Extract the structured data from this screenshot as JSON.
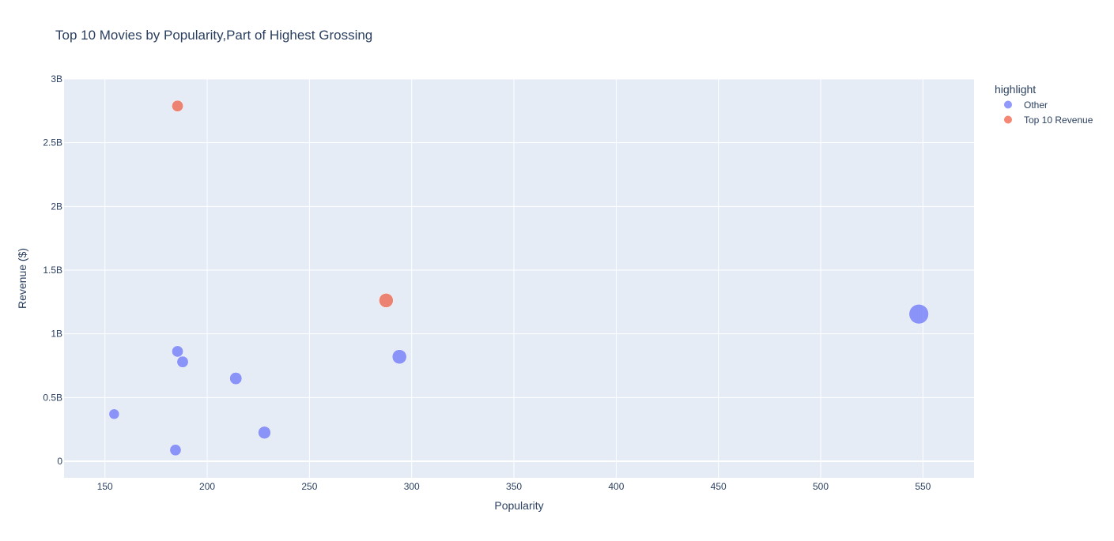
{
  "chart_data": {
    "type": "scatter",
    "title": "Top 10 Movies by Popularity,Part of Highest Grossing",
    "xlabel": "Popularity",
    "ylabel": "Revenue ($)",
    "xlim": [
      130,
      575
    ],
    "ylim": [
      -0.13,
      3.0
    ],
    "x_ticks": [
      150,
      200,
      250,
      300,
      350,
      400,
      450,
      500,
      550
    ],
    "y_ticks": [
      {
        "value": 0,
        "label": "0"
      },
      {
        "value": 0.5,
        "label": "0.5B"
      },
      {
        "value": 1,
        "label": "1B"
      },
      {
        "value": 1.5,
        "label": "1.5B"
      },
      {
        "value": 2,
        "label": "2B"
      },
      {
        "value": 2.5,
        "label": "2.5B"
      },
      {
        "value": 3,
        "label": "3B"
      }
    ],
    "y_unit": "billions USD",
    "grid": true,
    "legend": {
      "title": "highlight",
      "position": "top-right"
    },
    "series": [
      {
        "name": "Other",
        "color": "#636efa",
        "points": [
          {
            "x": 548,
            "y": 1.155
          },
          {
            "x": 294,
            "y": 0.82
          },
          {
            "x": 228,
            "y": 0.225
          },
          {
            "x": 214,
            "y": 0.65
          },
          {
            "x": 188,
            "y": 0.78
          },
          {
            "x": 185.5,
            "y": 0.862
          },
          {
            "x": 184.5,
            "y": 0.088
          },
          {
            "x": 154.5,
            "y": 0.37
          }
        ]
      },
      {
        "name": "Top 10 Revenue",
        "color": "#ef553b",
        "points": [
          {
            "x": 287.5,
            "y": 1.262
          },
          {
            "x": 185.5,
            "y": 2.788
          }
        ]
      }
    ]
  }
}
